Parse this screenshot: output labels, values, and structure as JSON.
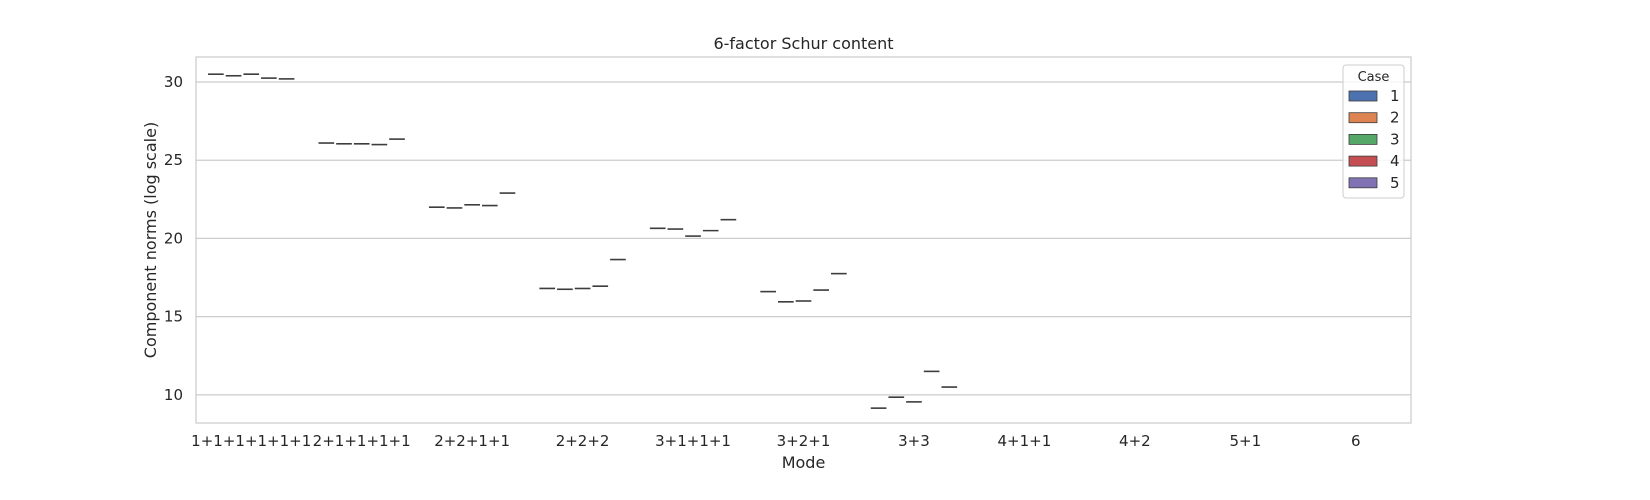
{
  "chart_data": {
    "type": "box",
    "title": "6-factor Schur content",
    "xlabel": "Mode",
    "ylabel": "Component norms (log scale)",
    "ylim": [
      8.2,
      31.6
    ],
    "yticks": [
      10,
      15,
      20,
      25,
      30
    ],
    "grid": "horizontal",
    "legend": {
      "title": "Case",
      "placement": "top-right"
    },
    "categories": [
      "1+1+1+1+1+1",
      "2+1+1+1+1",
      "2+2+1+1",
      "2+2+2",
      "3+1+1+1",
      "3+2+1",
      "3+3",
      "4+1+1",
      "4+2",
      "5+1",
      "6"
    ],
    "series": [
      {
        "name": "1",
        "color": "#4c72b0",
        "values": [
          30.5,
          26.1,
          22.0,
          16.8,
          20.65,
          16.6,
          9.15,
          null,
          null,
          null,
          null
        ]
      },
      {
        "name": "2",
        "color": "#dd8452",
        "values": [
          30.4,
          26.05,
          21.95,
          16.75,
          20.6,
          15.95,
          9.85,
          null,
          null,
          null,
          null
        ]
      },
      {
        "name": "3",
        "color": "#55a868",
        "values": [
          30.5,
          26.05,
          22.15,
          16.8,
          20.15,
          16.0,
          9.55,
          null,
          null,
          null,
          null
        ]
      },
      {
        "name": "4",
        "color": "#c44e52",
        "values": [
          30.25,
          26.0,
          22.1,
          16.95,
          20.5,
          16.7,
          11.5,
          null,
          null,
          null,
          null
        ]
      },
      {
        "name": "5",
        "color": "#8172b3",
        "values": [
          30.2,
          26.35,
          22.9,
          18.65,
          21.2,
          17.75,
          10.5,
          null,
          null,
          null,
          null
        ]
      }
    ]
  }
}
